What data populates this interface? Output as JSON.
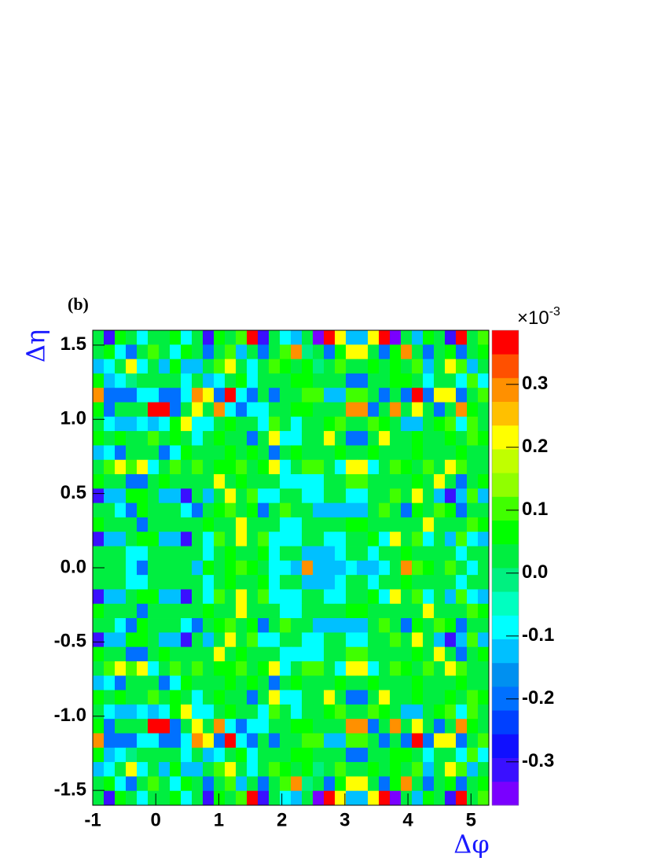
{
  "chart_data": {
    "type": "heatmap",
    "panel_label": "(b)",
    "x_label": "Δφ",
    "y_label": "Δη",
    "z_multiplier": "×10",
    "z_exponent": "-3",
    "xlim": [
      -1,
      5.283
    ],
    "ylim": [
      -1.6,
      1.6
    ],
    "zlim": [
      -0.369,
      0.386
    ],
    "xticks": [
      -1,
      0,
      1,
      2,
      3,
      4,
      5
    ],
    "yticks": [
      -1.5,
      {
        "value": -1,
        "label": "-1.0"
      },
      -0.5,
      {
        "value": 0,
        "label": "0.0"
      },
      0.5,
      {
        "value": 1,
        "label": "1.0"
      },
      1.5
    ],
    "zticks": [
      -0.3,
      -0.2,
      -0.1,
      {
        "value": 0,
        "label": "0.0"
      },
      0.1,
      0.2,
      0.3
    ],
    "colors": [
      "#7a00ff",
      "#3a10ff",
      "#1010ff",
      "#0040ff",
      "#0070ff",
      "#0090f0",
      "#00c0ff",
      "#00ffff",
      "#00ffc0",
      "#00f080",
      "#00ee40",
      "#00ff00",
      "#40ff00",
      "#90ff00",
      "#c0ff00",
      "#ffff00",
      "#ffc000",
      "#ff9000",
      "#ff5000",
      "#ff0000"
    ],
    "z": [
      [
        0.02,
        -0.3,
        0.07,
        0.02,
        -0.07,
        0.02,
        0.02,
        0.07,
        -0.07,
        0.02,
        -0.3,
        0.07,
        0.02,
        0.12,
        0.36,
        -0.3,
        0.02,
        -0.07,
        -0.13,
        0.02,
        -0.36,
        0.36,
        0.2,
        -0.13,
        -0.13,
        0.2,
        0.36,
        -0.36,
        0.02,
        -0.13,
        0.07,
        0.02,
        -0.3,
        0.36,
        0.02,
        0.12
      ],
      [
        0.02,
        0.07,
        -0.07,
        -0.2,
        0.02,
        0.12,
        0.02,
        -0.07,
        0.07,
        0.02,
        -0.2,
        0.02,
        0.12,
        -0.13,
        0.02,
        -0.2,
        0.02,
        0.12,
        0.28,
        -0.02,
        0.02,
        -0.2,
        0.07,
        0.2,
        0.2,
        0.02,
        -0.2,
        0.07,
        0.28,
        0.02,
        -0.2,
        0.02,
        0.07,
        -0.2,
        0.02,
        0.07
      ],
      [
        -0.13,
        -0.07,
        0.02,
        0.2,
        -0.07,
        0.02,
        -0.13,
        0.07,
        -0.13,
        -0.13,
        0.02,
        0.12,
        0.2,
        0.02,
        -0.07,
        0.02,
        0.12,
        0.07,
        0.02,
        0.07,
        -0.02,
        0.02,
        0.12,
        0.02,
        0.02,
        0.07,
        0.02,
        0.07,
        0.02,
        0.12,
        -0.13,
        0.02,
        0.2,
        0.12,
        -0.13,
        0.02
      ],
      [
        0.07,
        -0.13,
        -0.07,
        -0.02,
        0.02,
        0.02,
        0.02,
        0.02,
        -0.07,
        0.02,
        -0.13,
        -0.07,
        0.02,
        0.07,
        -0.07,
        0.02,
        0.02,
        0.02,
        0.07,
        0.07,
        0.02,
        0.02,
        0.02,
        -0.2,
        -0.2,
        0.02,
        0.02,
        0.07,
        0.07,
        0.02,
        -0.07,
        0.02,
        0.02,
        -0.07,
        0.12,
        -0.07
      ],
      [
        0.28,
        -0.2,
        -0.2,
        -0.2,
        -0.07,
        -0.07,
        -0.2,
        -0.2,
        -0.07,
        0.28,
        0.2,
        -0.2,
        0.36,
        -0.07,
        -0.2,
        0.02,
        -0.2,
        0.02,
        0.02,
        0.12,
        0.12,
        -0.13,
        -0.13,
        0.12,
        0.12,
        0.02,
        -0.2,
        0.02,
        -0.2,
        0.36,
        -0.2,
        0.2,
        0.2,
        -0.2,
        0.02,
        0.12
      ],
      [
        0.07,
        -0.2,
        0.02,
        0.02,
        0.02,
        0.36,
        0.36,
        -0.2,
        0.02,
        0.2,
        0.02,
        0.28,
        -0.07,
        -0.2,
        -0.07,
        -0.07,
        0.02,
        0.02,
        0.07,
        0.07,
        0.02,
        0.02,
        0.02,
        0.28,
        0.28,
        -0.2,
        0.02,
        0.28,
        0.02,
        0.2,
        0.02,
        -0.2,
        0.02,
        0.28,
        0.07,
        0.02
      ],
      [
        0.02,
        -0.07,
        -0.13,
        -0.13,
        -0.07,
        -0.13,
        -0.07,
        0.07,
        0.2,
        -0.07,
        -0.07,
        0.02,
        0.07,
        0.02,
        0.02,
        -0.07,
        0.12,
        0.02,
        -0.07,
        0.02,
        0.02,
        0.07,
        0.12,
        0.02,
        0.02,
        0.12,
        0.07,
        0.02,
        -0.13,
        -0.13,
        0.02,
        0.07,
        0.12,
        -0.07,
        0.12,
        0.02
      ],
      [
        0.07,
        0.02,
        0.07,
        0.02,
        0.02,
        0.12,
        0.02,
        0.07,
        0.02,
        -0.07,
        0.02,
        0.07,
        0.02,
        0.02,
        -0.2,
        0.02,
        0.2,
        -0.07,
        -0.07,
        0.02,
        0.02,
        0.2,
        0.02,
        -0.2,
        -0.2,
        0.02,
        0.2,
        0.02,
        0.02,
        0.07,
        0.02,
        0.02,
        0.07,
        0.02,
        0.12,
        0.07
      ],
      [
        -0.13,
        -0.07,
        -0.2,
        0.02,
        0.02,
        0.02,
        -0.2,
        -0.07,
        0.07,
        0.02,
        0.02,
        0.02,
        0.07,
        0.02,
        0.07,
        0.02,
        -0.2,
        0.02,
        0.07,
        0.02,
        0.02,
        0.02,
        0.07,
        0.02,
        0.02,
        0.07,
        0.02,
        0.02,
        0.02,
        0.07,
        0.02,
        0.02,
        0.02,
        0.07,
        0.02,
        0.02
      ],
      [
        0.02,
        0.12,
        0.2,
        0.12,
        0.2,
        -0.07,
        0.02,
        0.12,
        0.02,
        0.12,
        0.02,
        0.07,
        0.07,
        0.12,
        0.02,
        0.07,
        0.2,
        -0.07,
        0.02,
        0.12,
        0.12,
        0.02,
        -0.07,
        0.2,
        0.2,
        -0.07,
        0.02,
        0.12,
        0.07,
        0.02,
        0.12,
        0.02,
        0.2,
        0.12,
        0.02,
        0.02
      ],
      [
        0.07,
        0.02,
        0.02,
        -0.2,
        -0.2,
        0.02,
        0.07,
        0.02,
        0.02,
        0.02,
        0.02,
        0.2,
        0.02,
        0.07,
        0.02,
        0.02,
        0.02,
        -0.07,
        -0.07,
        -0.07,
        -0.07,
        0.02,
        0.02,
        0.12,
        0.12,
        0.02,
        0.02,
        0.02,
        0.02,
        0.07,
        0.02,
        0.2,
        0.02,
        -0.2,
        0.02,
        0.07
      ],
      [
        -0.3,
        -0.13,
        -0.13,
        0.07,
        0.07,
        0.02,
        -0.13,
        -0.13,
        -0.3,
        0.02,
        -0.13,
        0.02,
        0.2,
        0.02,
        0.12,
        -0.07,
        -0.07,
        0.02,
        0.02,
        -0.07,
        -0.07,
        0.02,
        0.02,
        -0.07,
        -0.07,
        0.02,
        0.02,
        0.12,
        0.02,
        0.2,
        0.02,
        -0.13,
        -0.3,
        -0.13,
        0.12,
        -0.13
      ],
      [
        0.02,
        0.02,
        -0.07,
        -0.2,
        0.07,
        0.02,
        0.02,
        0.02,
        -0.07,
        -0.2,
        0.02,
        0.07,
        0.12,
        0.02,
        0.07,
        -0.2,
        0.02,
        0.12,
        0.02,
        0.02,
        -0.13,
        -0.13,
        -0.13,
        -0.13,
        -0.13,
        0.02,
        0.12,
        0.02,
        -0.2,
        0.07,
        0.02,
        0.12,
        0.07,
        -0.2,
        0.02,
        0.02
      ],
      [
        0.07,
        0.02,
        0.02,
        0.02,
        -0.2,
        0.02,
        0.02,
        0.02,
        0.02,
        0.02,
        0.07,
        0.02,
        0.02,
        0.2,
        0.02,
        0.02,
        0.02,
        -0.07,
        -0.07,
        0.02,
        0.02,
        0.02,
        0.02,
        0.07,
        0.07,
        0.02,
        0.02,
        0.02,
        0.02,
        0.02,
        0.2,
        0.02,
        0.02,
        0.02,
        0.12,
        0.07
      ],
      [
        -0.3,
        -0.13,
        -0.13,
        0.02,
        0.07,
        0.07,
        -0.13,
        -0.13,
        -0.3,
        0.02,
        -0.07,
        0.12,
        0.02,
        0.2,
        0.02,
        0.12,
        -0.07,
        -0.07,
        -0.07,
        0.02,
        0.02,
        -0.07,
        -0.07,
        0.02,
        0.02,
        0.07,
        -0.07,
        0.2,
        0.02,
        0.12,
        -0.07,
        0.02,
        -0.13,
        0.12,
        -0.07,
        -0.13
      ],
      [
        0.02,
        0.02,
        0.02,
        -0.07,
        -0.07,
        0.02,
        0.02,
        0.02,
        0.02,
        0.02,
        -0.07,
        0.02,
        0.07,
        0.02,
        0.02,
        0.07,
        -0.07,
        0.02,
        0.02,
        -0.13,
        -0.13,
        -0.13,
        -0.07,
        0.02,
        0.02,
        -0.07,
        0.02,
        0.02,
        0.07,
        0.02,
        0.02,
        0.02,
        0.02,
        -0.07,
        0.02,
        0.02
      ],
      [
        0.02,
        0.02,
        0.02,
        -0.07,
        -0.2,
        0.02,
        0.02,
        0.02,
        0.02,
        -0.13,
        0.07,
        0.02,
        0.07,
        0.12,
        0.07,
        0.02,
        -0.07,
        -0.07,
        -0.13,
        0.28,
        -0.13,
        -0.13,
        -0.13,
        -0.07,
        -0.13,
        -0.13,
        -0.07,
        0.02,
        0.28,
        0.12,
        0.07,
        0.02,
        0.12,
        0.02,
        -0.07,
        0.02
      ],
      [
        0.02,
        0.02,
        0.02,
        -0.07,
        -0.07,
        0.02,
        0.02,
        0.02,
        0.02,
        0.02,
        -0.07,
        0.02,
        0.07,
        0.02,
        0.02,
        0.07,
        -0.07,
        0.02,
        0.02,
        -0.13,
        -0.13,
        -0.13,
        -0.07,
        0.02,
        0.02,
        -0.07,
        0.02,
        0.02,
        0.07,
        0.02,
        0.02,
        0.02,
        0.02,
        -0.07,
        0.02,
        0.02
      ],
      [
        -0.3,
        -0.13,
        -0.13,
        0.02,
        0.07,
        0.07,
        -0.13,
        -0.13,
        -0.3,
        0.02,
        -0.07,
        0.12,
        0.02,
        0.2,
        0.02,
        0.12,
        -0.07,
        -0.07,
        -0.07,
        0.02,
        0.02,
        -0.07,
        -0.07,
        0.02,
        0.02,
        0.07,
        -0.07,
        0.2,
        0.02,
        0.12,
        -0.07,
        0.02,
        -0.13,
        0.12,
        -0.07,
        -0.13
      ],
      [
        0.07,
        0.02,
        0.02,
        0.02,
        -0.2,
        0.02,
        0.02,
        0.02,
        0.02,
        0.02,
        0.07,
        0.02,
        0.02,
        0.2,
        0.02,
        0.02,
        0.02,
        -0.07,
        -0.07,
        0.02,
        0.02,
        0.02,
        0.02,
        0.07,
        0.07,
        0.02,
        0.02,
        0.02,
        0.02,
        0.02,
        0.2,
        0.02,
        0.02,
        0.02,
        0.12,
        0.07
      ],
      [
        0.02,
        0.02,
        -0.07,
        -0.2,
        0.07,
        0.02,
        0.02,
        0.02,
        -0.07,
        -0.2,
        0.02,
        0.07,
        0.12,
        0.02,
        0.07,
        -0.2,
        0.02,
        0.12,
        0.02,
        0.02,
        -0.13,
        -0.13,
        -0.13,
        -0.13,
        -0.13,
        0.02,
        0.12,
        0.02,
        -0.2,
        0.07,
        0.02,
        0.12,
        0.07,
        -0.2,
        0.02,
        0.02
      ],
      [
        -0.3,
        -0.13,
        -0.13,
        0.07,
        0.07,
        0.02,
        -0.13,
        -0.13,
        -0.3,
        0.02,
        -0.13,
        0.02,
        0.2,
        0.02,
        0.12,
        -0.07,
        -0.07,
        0.02,
        0.02,
        -0.07,
        -0.07,
        0.02,
        0.02,
        -0.07,
        -0.07,
        0.02,
        0.02,
        0.12,
        0.02,
        0.2,
        0.02,
        -0.13,
        -0.3,
        -0.13,
        0.12,
        -0.13
      ],
      [
        0.07,
        0.02,
        0.02,
        -0.2,
        -0.2,
        0.02,
        0.07,
        0.02,
        0.02,
        0.02,
        0.02,
        0.2,
        0.02,
        0.07,
        0.02,
        0.02,
        0.02,
        -0.07,
        -0.07,
        -0.07,
        -0.07,
        0.02,
        0.02,
        0.12,
        0.12,
        0.02,
        0.02,
        0.02,
        0.02,
        0.07,
        0.02,
        0.2,
        0.02,
        -0.2,
        0.02,
        0.07
      ],
      [
        0.02,
        0.12,
        0.2,
        0.12,
        0.2,
        -0.07,
        0.02,
        0.12,
        0.02,
        0.12,
        0.02,
        0.07,
        0.07,
        0.12,
        0.02,
        0.07,
        0.2,
        -0.07,
        0.02,
        0.12,
        0.12,
        0.02,
        -0.07,
        0.2,
        0.2,
        -0.07,
        0.02,
        0.12,
        0.07,
        0.02,
        0.12,
        0.02,
        0.2,
        0.12,
        0.02,
        0.02
      ],
      [
        -0.13,
        -0.07,
        -0.2,
        0.02,
        0.02,
        0.02,
        -0.2,
        -0.07,
        0.07,
        0.02,
        0.02,
        0.02,
        0.07,
        0.02,
        0.07,
        0.02,
        -0.2,
        0.02,
        0.07,
        0.02,
        0.02,
        0.02,
        0.07,
        0.02,
        0.02,
        0.07,
        0.02,
        0.02,
        0.02,
        0.07,
        0.02,
        0.02,
        0.02,
        0.07,
        0.02,
        0.02
      ],
      [
        0.07,
        0.02,
        0.07,
        0.02,
        0.02,
        0.12,
        0.02,
        0.07,
        0.02,
        -0.07,
        0.02,
        0.07,
        0.02,
        0.02,
        -0.2,
        0.02,
        0.2,
        -0.07,
        -0.07,
        0.02,
        0.02,
        0.2,
        0.02,
        -0.2,
        -0.2,
        0.02,
        0.2,
        0.02,
        0.02,
        0.07,
        0.02,
        0.02,
        0.07,
        0.02,
        0.12,
        0.07
      ],
      [
        0.02,
        -0.07,
        -0.13,
        -0.13,
        -0.07,
        -0.13,
        -0.07,
        0.07,
        0.2,
        -0.07,
        -0.07,
        0.02,
        0.07,
        0.02,
        0.02,
        -0.07,
        0.12,
        0.02,
        -0.07,
        0.02,
        0.02,
        0.07,
        0.12,
        0.02,
        0.02,
        0.12,
        0.07,
        0.02,
        -0.13,
        -0.13,
        0.02,
        0.07,
        0.12,
        -0.07,
        0.12,
        0.02
      ],
      [
        0.07,
        -0.2,
        0.02,
        0.02,
        0.02,
        0.36,
        0.36,
        -0.2,
        0.02,
        0.2,
        0.02,
        0.28,
        -0.07,
        -0.2,
        -0.07,
        -0.07,
        0.02,
        0.02,
        0.07,
        0.07,
        0.02,
        0.02,
        0.02,
        0.28,
        0.28,
        -0.2,
        0.02,
        0.28,
        0.02,
        0.2,
        0.02,
        -0.2,
        0.02,
        0.28,
        0.07,
        0.02
      ],
      [
        0.28,
        -0.2,
        -0.2,
        -0.2,
        -0.07,
        -0.07,
        -0.2,
        -0.2,
        -0.07,
        0.28,
        0.2,
        -0.2,
        0.36,
        -0.07,
        -0.2,
        0.02,
        -0.2,
        0.02,
        0.02,
        0.12,
        0.12,
        -0.13,
        -0.13,
        0.12,
        0.12,
        0.02,
        -0.2,
        0.02,
        -0.2,
        0.36,
        -0.2,
        0.2,
        0.2,
        -0.2,
        0.02,
        0.12
      ],
      [
        0.07,
        -0.13,
        -0.07,
        -0.02,
        0.02,
        0.02,
        0.02,
        0.02,
        -0.07,
        0.02,
        -0.13,
        -0.07,
        0.02,
        0.07,
        -0.07,
        0.02,
        0.02,
        0.02,
        0.07,
        0.07,
        0.02,
        0.02,
        0.02,
        -0.2,
        -0.2,
        0.02,
        0.02,
        0.07,
        0.07,
        0.02,
        -0.07,
        0.02,
        0.02,
        -0.07,
        0.12,
        -0.07
      ],
      [
        -0.13,
        -0.07,
        0.02,
        0.2,
        -0.07,
        0.02,
        -0.13,
        0.07,
        -0.13,
        -0.13,
        0.02,
        0.12,
        0.2,
        0.02,
        -0.07,
        0.02,
        0.12,
        0.07,
        0.02,
        0.07,
        -0.02,
        0.02,
        0.12,
        0.02,
        0.02,
        0.07,
        0.02,
        0.07,
        0.02,
        0.12,
        -0.13,
        0.02,
        0.2,
        0.12,
        -0.13,
        0.02
      ],
      [
        0.02,
        0.07,
        -0.07,
        -0.2,
        0.02,
        0.12,
        0.02,
        -0.07,
        0.07,
        0.02,
        -0.2,
        0.02,
        0.12,
        -0.13,
        0.02,
        -0.2,
        0.02,
        0.12,
        0.28,
        -0.02,
        0.02,
        -0.2,
        0.07,
        0.2,
        0.2,
        0.02,
        -0.2,
        0.07,
        0.28,
        0.02,
        -0.2,
        0.02,
        0.07,
        -0.2,
        0.02,
        0.07
      ],
      [
        0.02,
        -0.3,
        0.07,
        0.02,
        -0.07,
        0.02,
        0.02,
        0.07,
        -0.07,
        0.02,
        -0.3,
        0.07,
        0.02,
        0.12,
        0.36,
        -0.3,
        0.02,
        -0.07,
        -0.13,
        0.02,
        -0.36,
        0.36,
        0.2,
        -0.13,
        -0.13,
        0.2,
        0.36,
        -0.36,
        0.02,
        -0.13,
        0.07,
        0.02,
        -0.3,
        0.36,
        0.02,
        0.12
      ]
    ]
  }
}
